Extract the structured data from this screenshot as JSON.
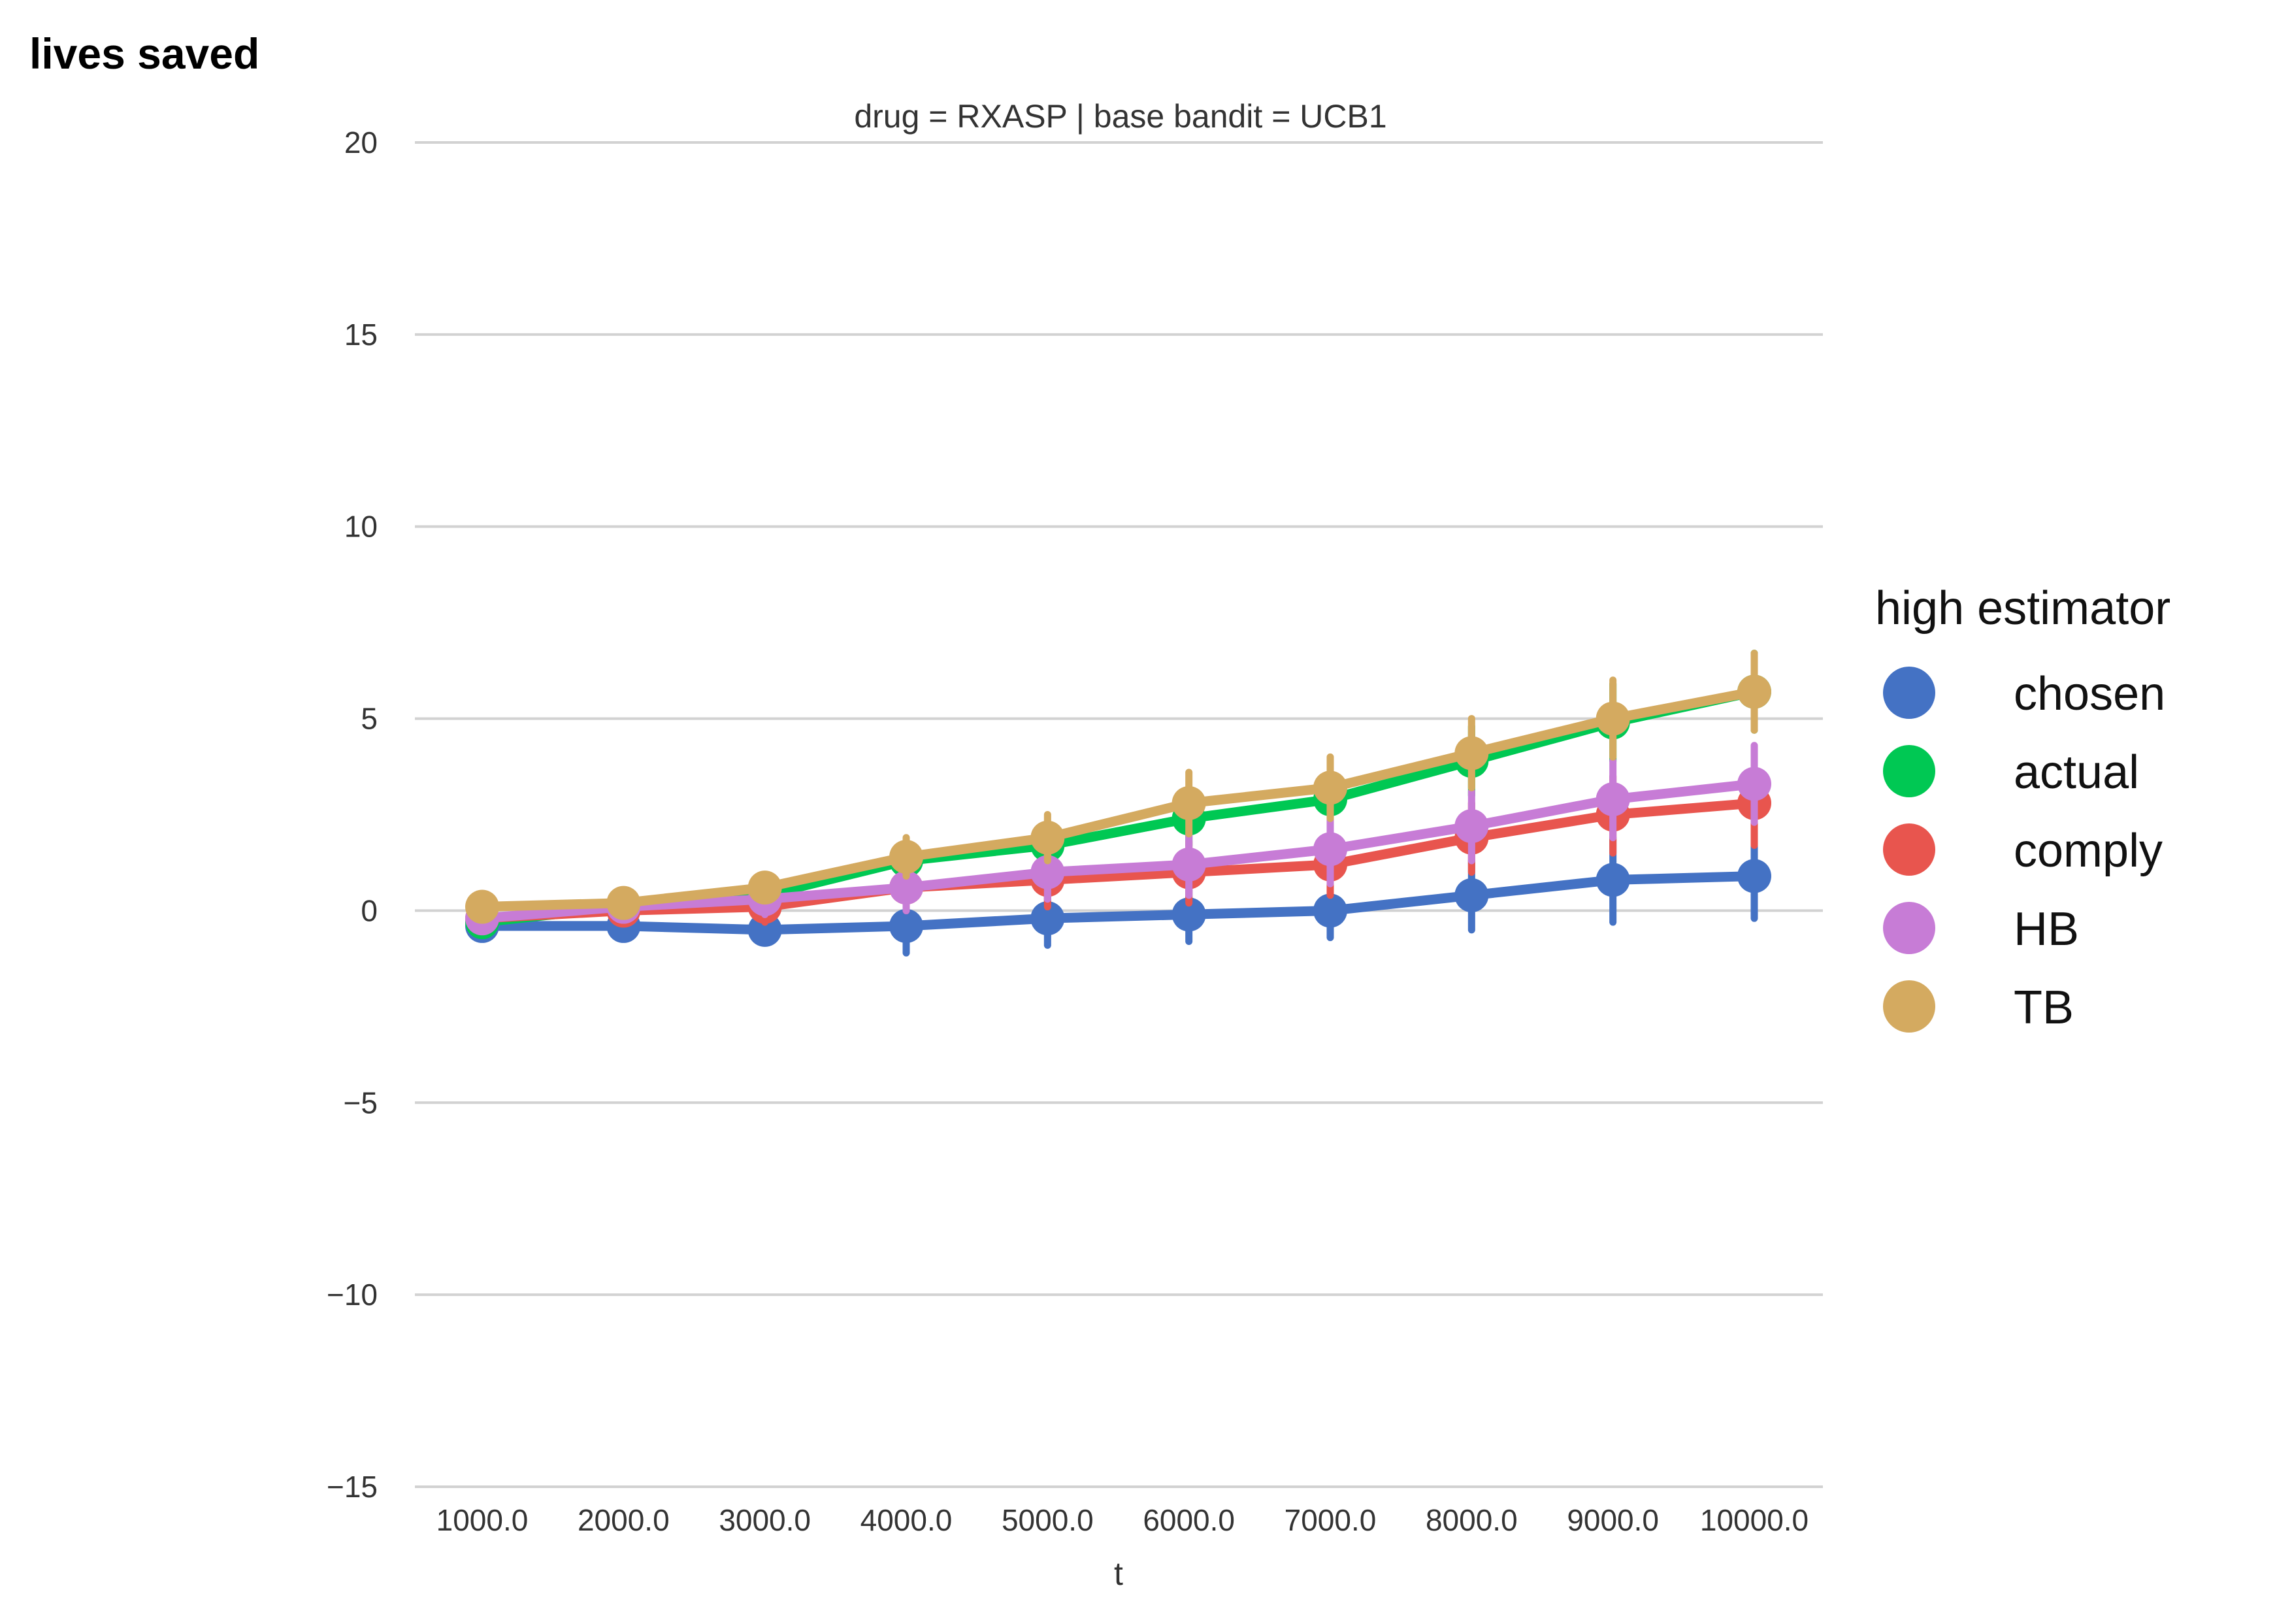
{
  "chart_data": {
    "type": "line",
    "title": "drug = RXASP | base bandit = UCB1",
    "ylabel": "lives saved",
    "xlabel": "t",
    "ylim": [
      -15,
      20
    ],
    "yticks": [
      20,
      15,
      10,
      5,
      0,
      -5,
      -10,
      -15
    ],
    "ytick_labels": [
      "20",
      "15",
      "10",
      "5",
      "0",
      "−5",
      "−10",
      "−15"
    ],
    "categories": [
      "1000.0",
      "2000.0",
      "3000.0",
      "4000.0",
      "5000.0",
      "6000.0",
      "7000.0",
      "8000.0",
      "9000.0",
      "10000.0"
    ],
    "grid": "horizontal",
    "legend_title": "high estimator",
    "legend_position": "right",
    "series": [
      {
        "name": "chosen",
        "color": "#4472C4",
        "values": [
          -0.4,
          -0.4,
          -0.5,
          -0.4,
          -0.2,
          -0.1,
          0.0,
          0.4,
          0.8,
          0.9
        ],
        "err": [
          0.1,
          0.1,
          0.3,
          0.7,
          0.7,
          0.7,
          0.7,
          0.9,
          1.1,
          1.1
        ]
      },
      {
        "name": "actual",
        "color": "#00C853",
        "values": [
          -0.3,
          0.1,
          0.4,
          1.3,
          1.7,
          2.4,
          2.9,
          3.9,
          4.9,
          5.7
        ],
        "err": [
          0.1,
          0.2,
          0.4,
          0.5,
          0.6,
          0.7,
          0.8,
          0.9,
          1.0,
          1.0
        ]
      },
      {
        "name": "comply",
        "color": "#E8554E",
        "values": [
          -0.2,
          0.0,
          0.1,
          0.6,
          0.8,
          1.0,
          1.2,
          1.9,
          2.5,
          2.8
        ],
        "err": [
          0.1,
          0.2,
          0.4,
          0.6,
          0.7,
          0.8,
          0.8,
          0.9,
          1.0,
          1.1
        ]
      },
      {
        "name": "HB",
        "color": "#C77CD6",
        "values": [
          -0.2,
          0.1,
          0.3,
          0.6,
          1.0,
          1.2,
          1.6,
          2.2,
          2.9,
          3.3
        ],
        "err": [
          0.1,
          0.2,
          0.4,
          0.6,
          0.7,
          0.8,
          0.9,
          0.9,
          1.0,
          1.0
        ]
      },
      {
        "name": "TB",
        "color": "#D4AA60",
        "values": [
          0.1,
          0.2,
          0.6,
          1.4,
          1.9,
          2.8,
          3.2,
          4.1,
          5.0,
          5.7
        ],
        "err": [
          0.1,
          0.2,
          0.3,
          0.5,
          0.6,
          0.8,
          0.8,
          0.9,
          1.0,
          1.0
        ]
      }
    ]
  }
}
